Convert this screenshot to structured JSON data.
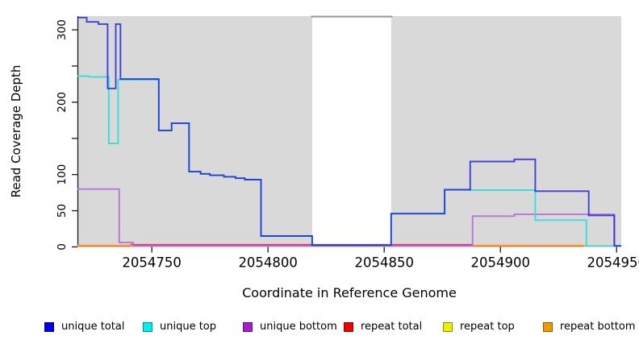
{
  "chart_data": {
    "type": "line",
    "line_style": "step-after",
    "title": "",
    "xlabel": "Coordinate in Reference Genome",
    "ylabel": "Read Coverage Depth",
    "xlim": [
      2054718,
      2054952
    ],
    "ylim": [
      0,
      319
    ],
    "grid": false,
    "legend_position": "bottom",
    "plot_background": "#d9d9d9",
    "axis_color": "#1a1a1a",
    "x_ticks": [
      {
        "value": 2054750,
        "label": "2054750"
      },
      {
        "value": 2054800,
        "label": "2054800"
      },
      {
        "value": 2054850,
        "label": "2054850"
      },
      {
        "value": 2054900,
        "label": "2054900"
      },
      {
        "value": 2054950,
        "label": "2054950"
      }
    ],
    "y_ticks": [
      {
        "value": 0,
        "label": "0"
      },
      {
        "value": 50,
        "label": "50"
      },
      {
        "value": 100,
        "label": "100"
      },
      {
        "value": 150,
        "label": ""
      },
      {
        "value": 200,
        "label": "200"
      },
      {
        "value": 250,
        "label": ""
      },
      {
        "value": 300,
        "label": "300"
      }
    ],
    "masked_region": {
      "x_start": 2054819,
      "x_end": 2054853,
      "color": "#ffffff",
      "border_top_color": "#9c9c9c"
    },
    "series": [
      {
        "name": "repeat top",
        "legend_color": "#eeee00",
        "line_color": "#e6e600",
        "opacity": 1,
        "points": [
          [
            2054718,
            1.2
          ],
          [
            2054952,
            1.2
          ]
        ]
      },
      {
        "name": "repeat total",
        "legend_color": "#ee0000",
        "line_color": "#d23b6e",
        "opacity": 1,
        "points": [
          [
            2054718,
            1.2
          ],
          [
            2054741,
            3
          ],
          [
            2054888,
            1.2
          ],
          [
            2054952,
            1.2
          ]
        ]
      },
      {
        "name": "repeat bottom",
        "legend_color": "#ee9900",
        "line_color": "#ff9f20",
        "opacity": 1,
        "points": [
          [
            2054718,
            2
          ],
          [
            2054741,
            1
          ],
          [
            2054888,
            2
          ],
          [
            2054936,
            1
          ],
          [
            2054952,
            1
          ]
        ]
      },
      {
        "name": "unique bottom",
        "legend_color": "#a020d0",
        "line_color": "#b76fd9",
        "opacity": 0.95,
        "points": [
          [
            2054718,
            80
          ],
          [
            2054736,
            6
          ],
          [
            2054742,
            1.2
          ],
          [
            2054888,
            42.5
          ],
          [
            2054906,
            45
          ],
          [
            2054949,
            1.2
          ],
          [
            2054952,
            1.2
          ]
        ]
      },
      {
        "name": "unique top",
        "legend_color": "#00eeee",
        "line_color": "#35dcdc",
        "opacity": 0.95,
        "points": [
          [
            2054718,
            236
          ],
          [
            2054723,
            235
          ],
          [
            2054731.5,
            143
          ],
          [
            2054735.5,
            231
          ],
          [
            2054753,
            161
          ],
          [
            2054758.5,
            171
          ],
          [
            2054766,
            104
          ],
          [
            2054771,
            101
          ],
          [
            2054775,
            99
          ],
          [
            2054781,
            97
          ],
          [
            2054786,
            95
          ],
          [
            2054790,
            93
          ],
          [
            2054797,
            15
          ],
          [
            2054819,
            2.5
          ],
          [
            2054853,
            46
          ],
          [
            2054876,
            79
          ],
          [
            2054887,
            78.5
          ],
          [
            2054915,
            37
          ],
          [
            2054937,
            1
          ],
          [
            2054952,
            1
          ]
        ]
      },
      {
        "name": "unique total",
        "legend_color": "#0000ee",
        "line_color": "#1a1ad8",
        "opacity": 0.8,
        "points": [
          [
            2054718,
            317
          ],
          [
            2054722,
            311
          ],
          [
            2054727,
            308
          ],
          [
            2054731,
            219
          ],
          [
            2054734.5,
            308
          ],
          [
            2054736.5,
            232
          ],
          [
            2054753,
            161
          ],
          [
            2054758.5,
            171
          ],
          [
            2054766,
            104
          ],
          [
            2054771,
            101
          ],
          [
            2054775,
            99
          ],
          [
            2054781,
            97
          ],
          [
            2054786,
            95
          ],
          [
            2054790,
            93
          ],
          [
            2054797,
            15
          ],
          [
            2054819,
            2.5
          ],
          [
            2054853,
            46
          ],
          [
            2054876,
            79
          ],
          [
            2054887,
            118
          ],
          [
            2054906,
            121
          ],
          [
            2054915,
            77
          ],
          [
            2054938,
            43.5
          ],
          [
            2054949,
            1.5
          ],
          [
            2054952,
            1.5
          ]
        ]
      }
    ],
    "legend_order": [
      "unique total",
      "unique top",
      "unique bottom",
      "repeat total",
      "repeat top",
      "repeat bottom"
    ]
  }
}
